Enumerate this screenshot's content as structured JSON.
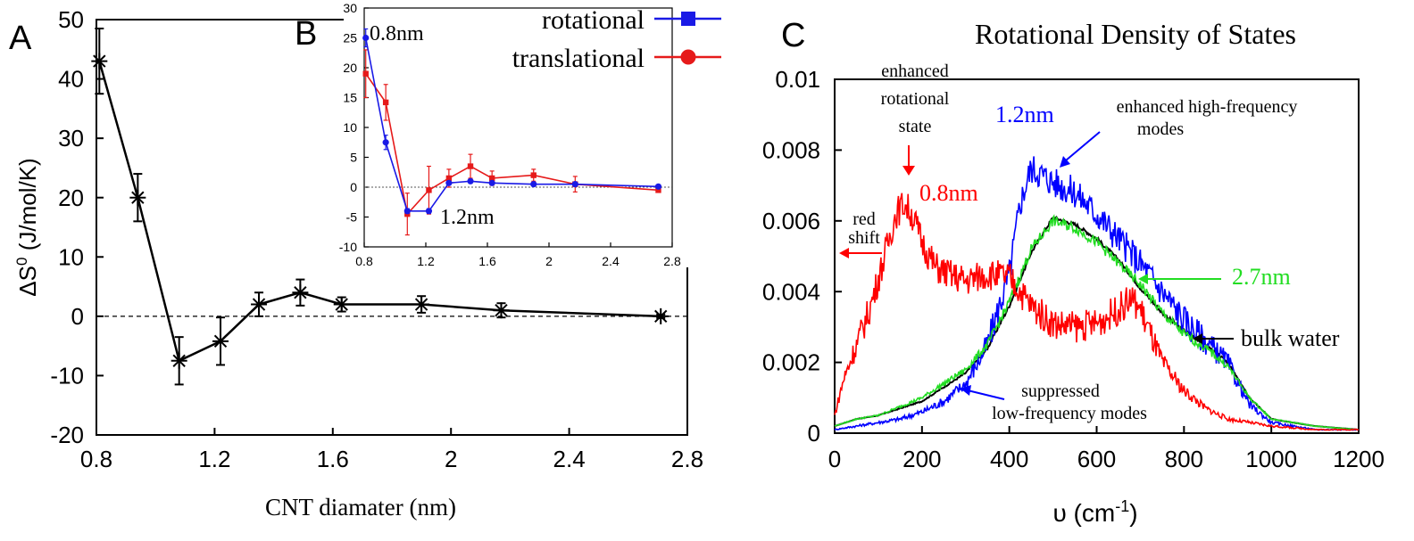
{
  "chart_data": [
    {
      "panel": "A",
      "type": "line",
      "xlabel": "CNT diamater (nm)",
      "ylabel_main": "ΔS",
      "ylabel_sup": "0",
      "ylabel_unit": " (J/mol/K)",
      "xlim": [
        0.8,
        2.8
      ],
      "ylim": [
        -20,
        50
      ],
      "xticks": [
        "0.8",
        "1.2",
        "1.6",
        "2",
        "2.4",
        "2.8"
      ],
      "yticks": [
        "-20",
        "-10",
        "0",
        "10",
        "20",
        "30",
        "40",
        "50"
      ],
      "reference_line_y": 0,
      "series": [
        {
          "color": "#000000",
          "marker": "asterisk",
          "x": [
            0.81,
            0.94,
            1.08,
            1.22,
            1.35,
            1.49,
            1.63,
            1.9,
            2.17,
            2.71
          ],
          "y": [
            43,
            20,
            -7.5,
            -4.2,
            2,
            4,
            2,
            2,
            1,
            0
          ],
          "err": [
            5.5,
            4,
            4,
            4,
            2,
            2.2,
            1.2,
            1.4,
            1.2,
            0.3
          ]
        }
      ]
    },
    {
      "panel": "B",
      "type": "line",
      "xlim": [
        0.8,
        2.8
      ],
      "ylim": [
        -10,
        30
      ],
      "xticks": [
        "0.8",
        "1.2",
        "1.6",
        "2",
        "2.4",
        "2.8"
      ],
      "yticks": [
        "-10",
        "-5",
        "0",
        "5",
        "10",
        "15",
        "20",
        "25",
        "30"
      ],
      "reference_line_y": 0,
      "legend": [
        "rotational",
        "translational"
      ],
      "legend_placement": "outside-top-right",
      "annotations": [
        "0.8nm",
        "1.2nm"
      ],
      "series": [
        {
          "name": "rotational",
          "color": "#1a1ae6",
          "x": [
            0.81,
            0.94,
            1.08,
            1.22,
            1.35,
            1.49,
            1.63,
            1.9,
            2.17,
            2.71
          ],
          "y": [
            25,
            7.5,
            -4,
            -4,
            0.7,
            1,
            0.7,
            0.5,
            0.5,
            0.1
          ],
          "err": [
            1.5,
            1.2,
            0.4,
            0.4,
            0.3,
            0.3,
            0.3,
            0.3,
            0.3,
            0.2
          ]
        },
        {
          "name": "translational",
          "color": "#e61a1a",
          "x": [
            0.81,
            0.94,
            1.08,
            1.22,
            1.35,
            1.49,
            1.63,
            1.9,
            2.17,
            2.71
          ],
          "y": [
            19,
            14.2,
            -4.5,
            -0.5,
            1.5,
            3.5,
            1.5,
            2,
            0.5,
            -0.5
          ],
          "err": [
            4,
            3,
            3.5,
            4,
            1.5,
            2,
            1.2,
            1,
            1.3,
            0.3
          ]
        }
      ]
    },
    {
      "panel": "C",
      "type": "line",
      "title": "Rotational Density of States",
      "xlabel_main": "υ (cm",
      "xlabel_sup": "-1",
      "xlabel_end": ")",
      "xlim": [
        0,
        1200
      ],
      "ylim": [
        0,
        0.01
      ],
      "xticks": [
        "0",
        "200",
        "400",
        "600",
        "800",
        "1000",
        "1200"
      ],
      "yticks": [
        "0",
        "0.002",
        "0.004",
        "0.006",
        "0.008",
        "0.01"
      ],
      "annotations": [
        "enhanced",
        "rotational",
        "state",
        "red",
        "shift",
        "enhanced high-frequency",
        "modes",
        "suppressed",
        "low-frequency modes",
        "0.8nm",
        "1.2nm",
        "2.7nm",
        "bulk water"
      ],
      "series": [
        {
          "label": "0.8nm",
          "color": "#ff0000",
          "x": [
            0,
            20,
            50,
            80,
            110,
            140,
            160,
            180,
            200,
            230,
            260,
            300,
            350,
            400,
            450,
            500,
            550,
            600,
            650,
            680,
            700,
            750,
            800,
            850,
            900,
            1000,
            1100,
            1200
          ],
          "y": [
            0.0005,
            0.0015,
            0.0025,
            0.0035,
            0.0048,
            0.0062,
            0.0065,
            0.0061,
            0.0054,
            0.0047,
            0.0045,
            0.0043,
            0.0045,
            0.0044,
            0.0036,
            0.0031,
            0.003,
            0.0031,
            0.0035,
            0.0038,
            0.0035,
            0.002,
            0.0012,
            0.0007,
            0.0004,
            0.0002,
            0.0001,
            0.0001
          ]
        },
        {
          "label": "1.2nm",
          "color": "#0000ff",
          "x": [
            0,
            50,
            100,
            150,
            200,
            250,
            300,
            350,
            400,
            425,
            450,
            475,
            500,
            550,
            600,
            650,
            700,
            750,
            800,
            850,
            900,
            950,
            1000,
            1100,
            1200
          ],
          "y": [
            0.0001,
            0.0002,
            0.0003,
            0.0004,
            0.0006,
            0.0009,
            0.0014,
            0.0025,
            0.0045,
            0.0065,
            0.0075,
            0.0073,
            0.0071,
            0.0068,
            0.0062,
            0.0055,
            0.0048,
            0.004,
            0.0032,
            0.0026,
            0.002,
            0.0008,
            0.0003,
            0.0001,
            0.0001
          ]
        },
        {
          "label": "bulk water",
          "color": "#000000",
          "x": [
            0,
            50,
            100,
            200,
            300,
            350,
            400,
            450,
            500,
            550,
            600,
            650,
            700,
            750,
            800,
            850,
            900,
            950,
            1000,
            1100,
            1200
          ],
          "y": [
            0.0002,
            0.0004,
            0.0005,
            0.0009,
            0.0017,
            0.0024,
            0.0036,
            0.0051,
            0.0061,
            0.0059,
            0.0055,
            0.0049,
            0.0041,
            0.0034,
            0.0029,
            0.0025,
            0.002,
            0.001,
            0.0004,
            0.0002,
            0.0001
          ]
        },
        {
          "label": "2.7nm",
          "color": "#22dd22",
          "x": [
            0,
            50,
            100,
            200,
            300,
            350,
            400,
            450,
            500,
            550,
            600,
            650,
            700,
            750,
            800,
            850,
            900,
            950,
            1000,
            1100,
            1200
          ],
          "y": [
            0.0002,
            0.0004,
            0.0005,
            0.001,
            0.0018,
            0.0025,
            0.0037,
            0.0052,
            0.006,
            0.0058,
            0.0054,
            0.0048,
            0.0042,
            0.0034,
            0.0028,
            0.0024,
            0.0019,
            0.001,
            0.0004,
            0.0002,
            0.0001
          ]
        }
      ]
    }
  ]
}
